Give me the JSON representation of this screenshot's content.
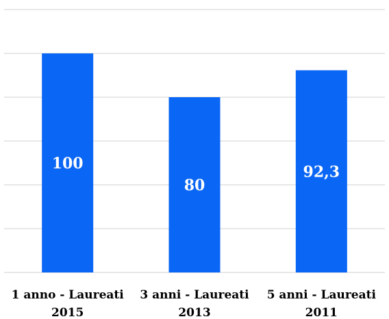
{
  "chart_data": {
    "type": "bar",
    "categories": [
      [
        "1 anno - Laureati",
        "2015"
      ],
      [
        "3 anni - Laureati",
        "2013"
      ],
      [
        "5 anni - Laureati",
        "2011"
      ]
    ],
    "values": [
      100,
      80,
      92.3
    ],
    "data_labels": [
      "100",
      "80",
      "92,3"
    ],
    "ylim": [
      0,
      120
    ],
    "grid": true,
    "bar_color": "#0a66f5",
    "grid_color": "#d9d9d9",
    "label_color": "#ffffff"
  }
}
